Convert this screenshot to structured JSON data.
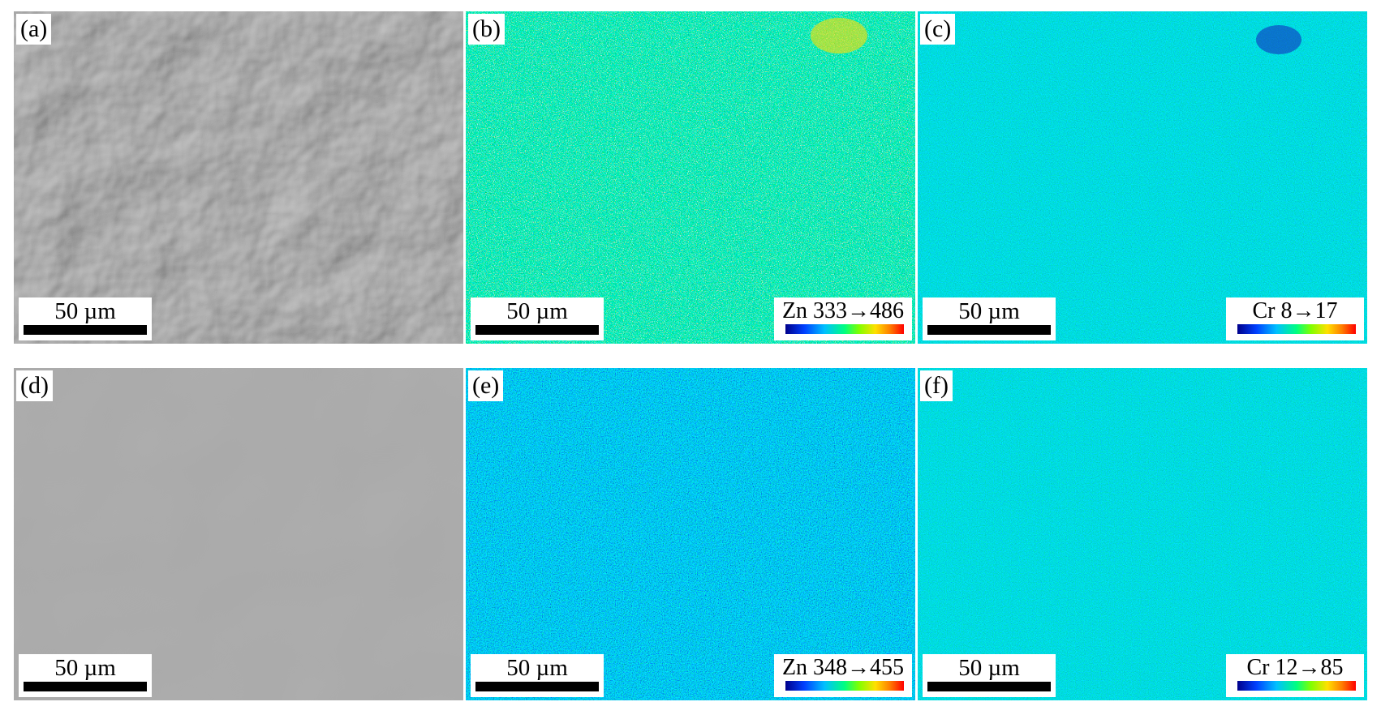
{
  "panels": [
    {
      "label": "(a)",
      "kind": "sem",
      "texture": "rough",
      "scale_bar": "50 µm"
    },
    {
      "label": "(b)",
      "kind": "map",
      "element": "Zn",
      "range": "333→486",
      "legend_text": "Zn 333→486",
      "scale_bar": "50 µm"
    },
    {
      "label": "(c)",
      "kind": "map",
      "element": "Cr",
      "range": "8→17",
      "legend_text": "Cr 8→17",
      "scale_bar": "50 µm"
    },
    {
      "label": "(d)",
      "kind": "sem",
      "texture": "smooth",
      "scale_bar": "50 µm"
    },
    {
      "label": "(e)",
      "kind": "map",
      "element": "Zn",
      "range": "348→455",
      "legend_text": "Zn 348→455",
      "scale_bar": "50 µm"
    },
    {
      "label": "(f)",
      "kind": "map",
      "element": "Cr",
      "range": "12→85",
      "legend_text": "Cr 12→85",
      "scale_bar": "50 µm"
    }
  ],
  "colors": {
    "background": "#ffffff",
    "colormap": [
      "#00008b",
      "#0040ff",
      "#00c0ff",
      "#00ff80",
      "#80ff00",
      "#ffe000",
      "#ff8000",
      "#ff0000"
    ]
  }
}
